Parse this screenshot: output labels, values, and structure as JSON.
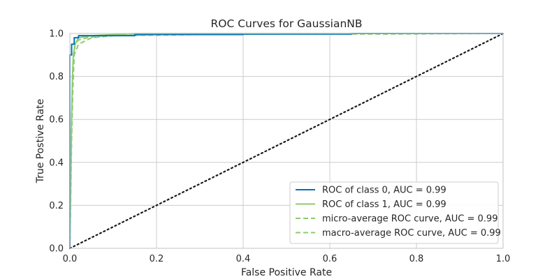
{
  "chart_data": {
    "type": "line",
    "title": "ROC Curves for GaussianNB",
    "xlabel": "False Positive Rate",
    "ylabel": "True Postive Rate",
    "xlim": [
      0.0,
      1.0
    ],
    "ylim": [
      0.0,
      1.0
    ],
    "xticks": [
      "0.0",
      "0.2",
      "0.4",
      "0.6",
      "0.8",
      "1.0"
    ],
    "yticks": [
      "0.0",
      "0.2",
      "0.4",
      "0.6",
      "0.8",
      "1.0"
    ],
    "grid": true,
    "legend_position": "lower right",
    "series": [
      {
        "name": "ROC of class 0, AUC = 0.99",
        "color": "#0072B2",
        "dash": "solid",
        "x": [
          0.0,
          0.0,
          0.004,
          0.004,
          0.01,
          0.01,
          0.02,
          0.02,
          0.15,
          0.15,
          0.4,
          0.4,
          0.65,
          0.65,
          1.0
        ],
        "y": [
          0.0,
          0.9,
          0.9,
          0.95,
          0.95,
          0.98,
          0.98,
          0.99,
          0.99,
          0.995,
          0.995,
          0.997,
          0.997,
          1.0,
          1.0
        ]
      },
      {
        "name": "ROC of class 1, AUC = 0.99",
        "color": "#8ECB6C",
        "dash": "solid",
        "x": [
          0.0,
          0.002,
          0.004,
          0.006,
          0.008,
          0.012,
          0.02,
          0.05,
          0.15,
          1.0
        ],
        "y": [
          0.0,
          0.3,
          0.6,
          0.8,
          0.9,
          0.95,
          0.98,
          0.99,
          1.0,
          1.0
        ]
      },
      {
        "name": "micro-average ROC curve, AUC = 0.99",
        "color": "#8ECB6C",
        "dash": "dashed",
        "x": [
          0.0,
          0.004,
          0.008,
          0.012,
          0.02,
          0.04,
          0.08,
          0.2,
          0.5,
          0.7,
          1.0
        ],
        "y": [
          0.0,
          0.5,
          0.85,
          0.95,
          0.97,
          0.98,
          0.99,
          0.995,
          0.997,
          0.997,
          1.0
        ]
      },
      {
        "name": "macro-average ROC curve, AUC = 0.99",
        "color": "#8ECB6C",
        "dash": "dashed",
        "x": [
          0.0,
          0.004,
          0.01,
          0.02,
          0.03,
          0.05,
          0.1,
          0.3,
          0.6,
          1.0
        ],
        "y": [
          0.0,
          0.6,
          0.9,
          0.95,
          0.96,
          0.98,
          0.99,
          0.995,
          1.0,
          1.0
        ]
      }
    ],
    "reference_line": {
      "x": [
        0.0,
        1.0
      ],
      "y": [
        0.0,
        1.0
      ],
      "color": "#1a1a1a",
      "dash": "dotted"
    }
  }
}
